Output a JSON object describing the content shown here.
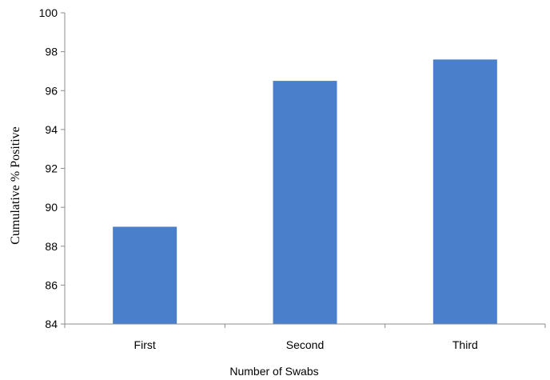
{
  "chart_data": {
    "type": "bar",
    "categories": [
      "First",
      "Second",
      "Third"
    ],
    "values": [
      89,
      96.5,
      97.6
    ],
    "title": "",
    "xlabel": "Number of Swabs",
    "ylabel": "Cumulative % Positive",
    "ylim": [
      84,
      100
    ],
    "yticks": [
      "84",
      "86",
      "88",
      "90",
      "92",
      "94",
      "96",
      "98",
      "100"
    ],
    "grid": false,
    "legend": "none",
    "bar_color": "#4a7fcb",
    "axis_color": "#8c8c8c"
  }
}
